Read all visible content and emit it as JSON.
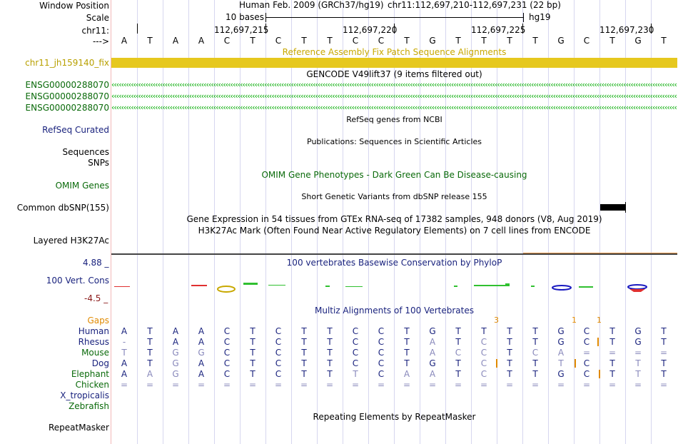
{
  "header": {
    "window_position_label": "Window Position",
    "assembly_text": "Human Feb. 2009 (GRCh37/hg19)",
    "position_text": "chr11:112,697,210-112,697,231 (22 bp)",
    "scale_label": "Scale",
    "scale_text": "10 bases",
    "scale_db": "hg19",
    "chrom_label": "chr11:",
    "ticks": [
      "112,697,215",
      "112,697,220",
      "112,697,225",
      "112,697,230"
    ],
    "arrow_label": "--->"
  },
  "sequence": [
    "A",
    "T",
    "A",
    "A",
    "C",
    "T",
    "C",
    "T",
    "T",
    "C",
    "C",
    "T",
    "G",
    "T",
    "T",
    "T",
    "T",
    "G",
    "C",
    "T",
    "G",
    "T"
  ],
  "fix_patch": {
    "title": "Reference Assembly Fix Patch Sequence Alignments",
    "label": "chr11_jh159140_fix",
    "color": "#e6c81e"
  },
  "gencode": {
    "title": "GENCODE V49lift37 (9 items filtered out)",
    "genes": [
      "ENSG00000288070",
      "ENSG00000288070",
      "ENSG00000288070"
    ]
  },
  "refseq": {
    "title": "RefSeq genes from NCBI",
    "label": "RefSeq Curated"
  },
  "publications": {
    "title": "Publications: Sequences in Scientific Articles",
    "label": "Sequences"
  },
  "snps": {
    "label": "SNPs"
  },
  "omim": {
    "title": "OMIM Gene Phenotypes - Dark Green Can Be Disease-causing",
    "label": "OMIM Genes"
  },
  "dbsnp": {
    "title": "Short Genetic Variants from dbSNP release 155",
    "label": "Common dbSNP(155)"
  },
  "gtex": {
    "title": "Gene Expression in 54 tissues from GTEx RNA-seq of 17382 samples, 948 donors (V8, Aug 2019)"
  },
  "h3k27ac": {
    "title": "H3K27Ac Mark (Often Found Near Active Regulatory Elements) on 7 cell lines from ENCODE",
    "label": "Layered H3K27Ac"
  },
  "conservation": {
    "title": "100 vertebrates Basewise Conservation by PhyloP",
    "label": "100 Vert. Cons",
    "max": "4.88 _",
    "min": "-4.5 _"
  },
  "multiz": {
    "title": "Multiz Alignments of 100 Vertebrates",
    "gaps_label": "Gaps",
    "gap_marks": [
      "3",
      "1",
      "1"
    ],
    "species": [
      {
        "name": "Human",
        "bases": [
          "A",
          "T",
          "A",
          "A",
          "C",
          "T",
          "C",
          "T",
          "T",
          "C",
          "C",
          "T",
          "G",
          "T",
          "T",
          "T",
          "T",
          "G",
          "C",
          "T",
          "G",
          "T"
        ]
      },
      {
        "name": "Rhesus",
        "bases": [
          "-",
          "T",
          "A",
          "A",
          "C",
          "T",
          "C",
          "T",
          "T",
          "C",
          "C",
          "T",
          "A",
          "T",
          "C",
          "T",
          "T",
          "G",
          "C",
          "T",
          "G",
          "T"
        ]
      },
      {
        "name": "Mouse",
        "bases": [
          "T",
          "T",
          "G",
          "G",
          "C",
          "T",
          "C",
          "T",
          "T",
          "C",
          "C",
          "T",
          "A",
          "C",
          "C",
          "T",
          "C",
          "A",
          "=",
          "=",
          "=",
          "="
        ]
      },
      {
        "name": "Dog",
        "bases": [
          "A",
          "T",
          "G",
          "A",
          "C",
          "T",
          "C",
          "T",
          "T",
          "C",
          "C",
          "T",
          "G",
          "T",
          "C",
          "T",
          "T",
          "T",
          "C",
          "T",
          "T",
          "T"
        ]
      },
      {
        "name": "Elephant",
        "bases": [
          "A",
          "A",
          "G",
          "A",
          "C",
          "T",
          "C",
          "T",
          "T",
          "T",
          "C",
          "A",
          "A",
          "T",
          "C",
          "T",
          "T",
          "G",
          "C",
          "T",
          "T",
          "T"
        ]
      },
      {
        "name": "Chicken",
        "bases": [
          "=",
          "=",
          "=",
          "=",
          "=",
          "=",
          "=",
          "=",
          "=",
          "=",
          "=",
          "=",
          "=",
          "=",
          "=",
          "=",
          "=",
          "=",
          "=",
          "=",
          "=",
          "="
        ]
      },
      {
        "name": "X_tropicalis",
        "bases": []
      },
      {
        "name": "Zebrafish",
        "bases": []
      }
    ]
  },
  "repeatmasker": {
    "title": "Repeating Elements by RepeatMasker",
    "label": "RepeatMasker"
  }
}
